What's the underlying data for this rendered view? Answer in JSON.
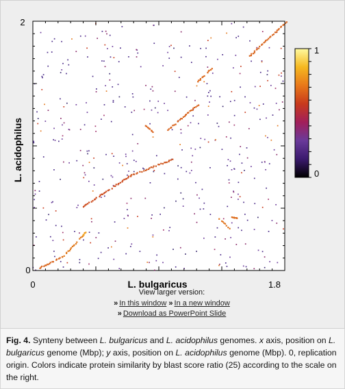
{
  "chart_data": {
    "type": "scatter",
    "title": "",
    "xlabel": "L. bulgaricus",
    "ylabel": "L. acidophilus",
    "xlim": [
      0,
      1.86
    ],
    "ylim": [
      0,
      2
    ],
    "xticklabels_shown": [
      "0",
      "1.8"
    ],
    "yticklabels_shown": [
      "0",
      "2"
    ],
    "colorbar": {
      "range": [
        0,
        1
      ],
      "ticklabels": [
        "0",
        "1"
      ],
      "colormap": [
        "#000000",
        "#3b1a6e",
        "#6a3a9a",
        "#a21f5a",
        "#c83a1c",
        "#e8781a",
        "#f5b820",
        "#fffaa0"
      ],
      "placement": "right"
    },
    "series": [
      {
        "segments": [
          {
            "x": [
              0.05,
              0.22
            ],
            "y": [
              0.02,
              0.11
            ],
            "color": "#d8641c"
          },
          {
            "x": [
              0.22,
              0.37
            ],
            "y": [
              0.11,
              0.28
            ],
            "color": "#e0781a"
          },
          {
            "x": [
              0.37,
              0.39
            ],
            "y": [
              0.28,
              0.31
            ],
            "color": "#f1a124"
          },
          {
            "x": [
              0.37,
              0.72
            ],
            "y": [
              0.51,
              0.76
            ],
            "color": "#cc4a1c"
          },
          {
            "x": [
              0.72,
              1.03
            ],
            "y": [
              0.76,
              0.89
            ],
            "color": "#cf561c"
          },
          {
            "x": [
              0.83,
              0.89
            ],
            "y": [
              1.16,
              1.11
            ],
            "color": "#d9621c"
          },
          {
            "x": [
              1.0,
              1.22
            ],
            "y": [
              1.13,
              1.33
            ],
            "color": "#d8621c"
          },
          {
            "x": [
              1.2,
              1.32
            ],
            "y": [
              1.5,
              1.62
            ],
            "color": "#dc681c"
          },
          {
            "x": [
              1.6,
              1.87
            ],
            "y": [
              1.72,
              1.99
            ],
            "color": "#d8641c"
          },
          {
            "x": [
              1.37,
              1.45
            ],
            "y": [
              0.42,
              0.34
            ],
            "color": "#e0741c"
          },
          {
            "x": [
              1.47,
              1.51
            ],
            "y": [
              0.43,
              0.42
            ],
            "color": "#dd6c1c"
          }
        ],
        "dot_colors": [
          "#4a2a88",
          "#6b3a9a",
          "#8a2a6a",
          "#c83a1c",
          "#e4781c",
          "#3a2a70",
          "#a0306a"
        ],
        "scattered_matches": "sparse low-similarity points scattered across the plot"
      }
    ]
  },
  "links": {
    "heading": "View larger version:",
    "raquo": "»",
    "in_this_window": "In this window",
    "in_new_window": "In a new window",
    "download_ppt": "Download as PowerPoint Slide"
  },
  "caption": {
    "label": "Fig. 4.",
    "t1": " Synteny between ",
    "t2": "L. bulgaricus",
    "t3": " and ",
    "t4": "L. acidophilus",
    "t5": " genomes. ",
    "t6": "x",
    "t7": " axis, position on ",
    "t8": "L. bulgaricus",
    "t9": " genome (Mbp); ",
    "t10": "y",
    "t11": " axis, position on ",
    "t12": "L. acidophilus",
    "t13": " genome (Mbp). 0, replication origin. Colors indicate protein similarity by blast score ratio (25) according to the scale on the right."
  }
}
